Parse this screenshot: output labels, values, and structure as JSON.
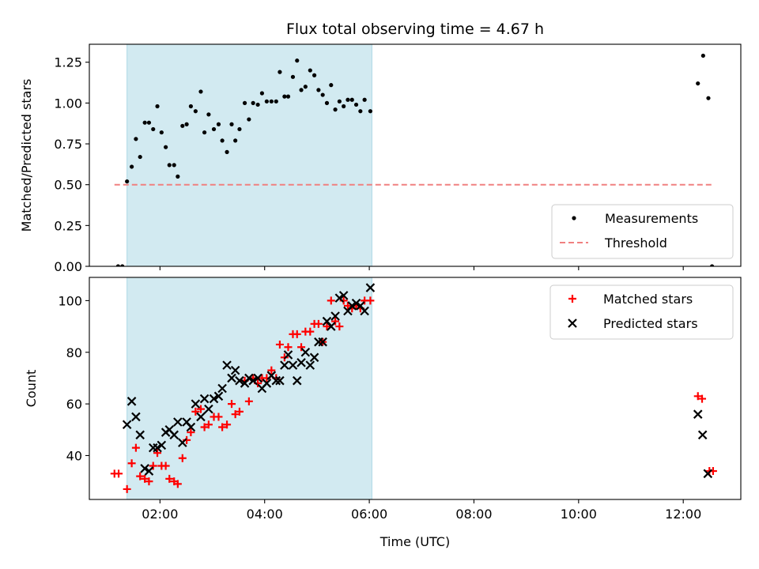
{
  "chart_data": {
    "title": "Flux total observing time = 4.67 h",
    "xlabel": "Time (UTC)",
    "x_unit": "hours UTC",
    "xlim": [
      0.65,
      13.1
    ],
    "xticks": [
      {
        "v": 2,
        "label": "02:00"
      },
      {
        "v": 4,
        "label": "04:00"
      },
      {
        "v": 6,
        "label": "06:00"
      },
      {
        "v": 8,
        "label": "08:00"
      },
      {
        "v": 10,
        "label": "10:00"
      },
      {
        "v": 12,
        "label": "12:00"
      }
    ],
    "observing_window": {
      "start": 1.37,
      "end": 6.05,
      "color": "#add8e6"
    },
    "panels": [
      {
        "type": "scatter",
        "ylabel": "Matched/Predicted stars",
        "ylim": [
          0,
          1.36
        ],
        "yticks": [
          {
            "v": 0,
            "label": "0.00"
          },
          {
            "v": 0.25,
            "label": "0.25"
          },
          {
            "v": 0.5,
            "label": "0.50"
          },
          {
            "v": 0.75,
            "label": "0.75"
          },
          {
            "v": 1.0,
            "label": "1.00"
          },
          {
            "v": 1.25,
            "label": "1.25"
          }
        ],
        "legend_position": "lower-right",
        "series": [
          {
            "name": "Measurements",
            "marker": "dot",
            "color": "#000000",
            "points": [
              [
                1.2,
                0.0
              ],
              [
                1.28,
                0.0
              ],
              [
                1.37,
                0.52
              ],
              [
                1.46,
                0.61
              ],
              [
                1.54,
                0.78
              ],
              [
                1.62,
                0.67
              ],
              [
                1.71,
                0.88
              ],
              [
                1.79,
                0.88
              ],
              [
                1.87,
                0.84
              ],
              [
                1.95,
                0.98
              ],
              [
                2.03,
                0.82
              ],
              [
                2.11,
                0.73
              ],
              [
                2.18,
                0.62
              ],
              [
                2.27,
                0.62
              ],
              [
                2.34,
                0.55
              ],
              [
                2.43,
                0.86
              ],
              [
                2.51,
                0.87
              ],
              [
                2.59,
                0.98
              ],
              [
                2.68,
                0.95
              ],
              [
                2.78,
                1.07
              ],
              [
                2.85,
                0.82
              ],
              [
                2.93,
                0.93
              ],
              [
                3.03,
                0.84
              ],
              [
                3.12,
                0.87
              ],
              [
                3.19,
                0.77
              ],
              [
                3.28,
                0.7
              ],
              [
                3.37,
                0.87
              ],
              [
                3.44,
                0.77
              ],
              [
                3.52,
                0.84
              ],
              [
                3.62,
                1.0
              ],
              [
                3.7,
                0.9
              ],
              [
                3.78,
                1.0
              ],
              [
                3.87,
                0.99
              ],
              [
                3.95,
                1.06
              ],
              [
                4.04,
                1.01
              ],
              [
                4.13,
                1.01
              ],
              [
                4.22,
                1.01
              ],
              [
                4.29,
                1.19
              ],
              [
                4.38,
                1.04
              ],
              [
                4.45,
                1.04
              ],
              [
                4.54,
                1.16
              ],
              [
                4.62,
                1.26
              ],
              [
                4.7,
                1.08
              ],
              [
                4.78,
                1.1
              ],
              [
                4.87,
                1.2
              ],
              [
                4.95,
                1.17
              ],
              [
                5.03,
                1.08
              ],
              [
                5.11,
                1.05
              ],
              [
                5.19,
                1.0
              ],
              [
                5.27,
                1.11
              ],
              [
                5.35,
                0.96
              ],
              [
                5.43,
                1.01
              ],
              [
                5.51,
                0.98
              ],
              [
                5.59,
                1.02
              ],
              [
                5.67,
                1.02
              ],
              [
                5.75,
                0.99
              ],
              [
                5.83,
                0.95
              ],
              [
                5.91,
                1.02
              ],
              [
                6.02,
                0.95
              ],
              [
                12.28,
                1.12
              ],
              [
                12.38,
                1.29
              ],
              [
                12.48,
                1.03
              ],
              [
                12.55,
                0.0
              ]
            ]
          },
          {
            "name": "Threshold",
            "marker": "dashed-line",
            "color": "#f08080",
            "points": [
              [
                1.13,
                0.5
              ],
              [
                12.55,
                0.5
              ]
            ]
          }
        ]
      },
      {
        "type": "scatter",
        "ylabel": "Count",
        "ylim": [
          23,
          109
        ],
        "yticks": [
          {
            "v": 40,
            "label": "40"
          },
          {
            "v": 60,
            "label": "60"
          },
          {
            "v": 80,
            "label": "80"
          },
          {
            "v": 100,
            "label": "100"
          }
        ],
        "legend_position": "upper-right",
        "series": [
          {
            "name": "Matched stars",
            "marker": "plus",
            "color": "#ff0000",
            "points": [
              [
                1.13,
                33
              ],
              [
                1.21,
                33
              ],
              [
                1.37,
                27
              ],
              [
                1.46,
                37
              ],
              [
                1.54,
                43
              ],
              [
                1.62,
                32
              ],
              [
                1.71,
                31
              ],
              [
                1.79,
                30
              ],
              [
                1.87,
                36
              ],
              [
                1.95,
                41
              ],
              [
                2.03,
                36
              ],
              [
                2.11,
                36
              ],
              [
                2.18,
                31
              ],
              [
                2.27,
                30
              ],
              [
                2.34,
                29
              ],
              [
                2.43,
                39
              ],
              [
                2.51,
                46
              ],
              [
                2.59,
                49
              ],
              [
                2.68,
                57
              ],
              [
                2.78,
                58
              ],
              [
                2.85,
                51
              ],
              [
                2.93,
                52
              ],
              [
                3.03,
                55
              ],
              [
                3.12,
                55
              ],
              [
                3.19,
                51
              ],
              [
                3.28,
                52
              ],
              [
                3.37,
                60
              ],
              [
                3.44,
                56
              ],
              [
                3.52,
                57
              ],
              [
                3.62,
                69
              ],
              [
                3.7,
                61
              ],
              [
                3.78,
                70
              ],
              [
                3.87,
                68
              ],
              [
                3.95,
                70
              ],
              [
                4.04,
                70
              ],
              [
                4.13,
                73
              ],
              [
                4.22,
                70
              ],
              [
                4.29,
                83
              ],
              [
                4.38,
                78
              ],
              [
                4.45,
                82
              ],
              [
                4.54,
                87
              ],
              [
                4.62,
                87
              ],
              [
                4.7,
                82
              ],
              [
                4.78,
                88
              ],
              [
                4.87,
                88
              ],
              [
                4.95,
                91
              ],
              [
                5.03,
                91
              ],
              [
                5.11,
                84
              ],
              [
                5.19,
                90
              ],
              [
                5.27,
                100
              ],
              [
                5.35,
                92
              ],
              [
                5.43,
                90
              ],
              [
                5.51,
                100
              ],
              [
                5.59,
                98
              ],
              [
                5.67,
                97
              ],
              [
                5.75,
                98
              ],
              [
                5.83,
                97
              ],
              [
                5.91,
                100
              ],
              [
                6.02,
                100
              ],
              [
                12.28,
                63
              ],
              [
                12.36,
                62
              ],
              [
                12.5,
                34
              ],
              [
                12.57,
                34
              ]
            ]
          },
          {
            "name": "Predicted stars",
            "marker": "x",
            "color": "#000000",
            "points": [
              [
                1.37,
                52
              ],
              [
                1.46,
                61
              ],
              [
                1.54,
                55
              ],
              [
                1.62,
                48
              ],
              [
                1.71,
                35
              ],
              [
                1.79,
                34
              ],
              [
                1.87,
                43
              ],
              [
                1.95,
                43
              ],
              [
                2.03,
                44
              ],
              [
                2.11,
                49
              ],
              [
                2.18,
                50
              ],
              [
                2.27,
                48
              ],
              [
                2.34,
                53
              ],
              [
                2.43,
                45
              ],
              [
                2.51,
                53
              ],
              [
                2.59,
                51
              ],
              [
                2.68,
                60
              ],
              [
                2.78,
                55
              ],
              [
                2.85,
                62
              ],
              [
                2.93,
                58
              ],
              [
                3.03,
                62
              ],
              [
                3.12,
                63
              ],
              [
                3.19,
                66
              ],
              [
                3.28,
                75
              ],
              [
                3.37,
                70
              ],
              [
                3.44,
                73
              ],
              [
                3.52,
                69
              ],
              [
                3.62,
                68
              ],
              [
                3.7,
                70
              ],
              [
                3.78,
                69
              ],
              [
                3.87,
                70
              ],
              [
                3.95,
                66
              ],
              [
                4.04,
                68
              ],
              [
                4.13,
                71
              ],
              [
                4.22,
                69
              ],
              [
                4.29,
                69
              ],
              [
                4.38,
                75
              ],
              [
                4.45,
                79
              ],
              [
                4.54,
                75
              ],
              [
                4.62,
                69
              ],
              [
                4.7,
                76
              ],
              [
                4.78,
                80
              ],
              [
                4.87,
                75
              ],
              [
                4.95,
                78
              ],
              [
                5.03,
                84
              ],
              [
                5.11,
                84
              ],
              [
                5.19,
                92
              ],
              [
                5.27,
                90
              ],
              [
                5.35,
                94
              ],
              [
                5.43,
                101
              ],
              [
                5.51,
                102
              ],
              [
                5.59,
                96
              ],
              [
                5.67,
                98
              ],
              [
                5.75,
                99
              ],
              [
                5.83,
                98
              ],
              [
                5.91,
                96
              ],
              [
                6.02,
                105
              ],
              [
                12.28,
                56
              ],
              [
                12.37,
                48
              ],
              [
                12.47,
                33
              ]
            ]
          }
        ]
      }
    ]
  }
}
